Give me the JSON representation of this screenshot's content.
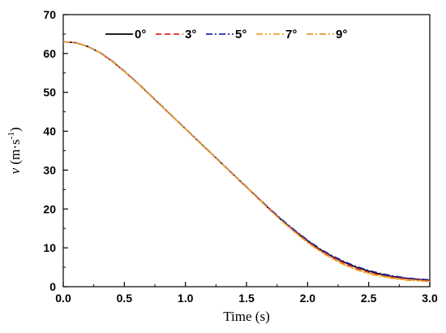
{
  "chart_data": {
    "type": "line",
    "title": "",
    "xlabel": "Time (s)",
    "ylabel": "v (m·s⁻¹)",
    "xlim": [
      0,
      3.0
    ],
    "ylim": [
      0,
      70
    ],
    "xticks": [
      "0.0",
      "0.5",
      "1.0",
      "1.5",
      "2.0",
      "2.5",
      "3.0"
    ],
    "yticks": [
      "0",
      "10",
      "20",
      "30",
      "40",
      "50",
      "60",
      "70"
    ],
    "grid": false,
    "legend": "top",
    "series": [
      {
        "name": "0°",
        "color": "#000000",
        "dash": "solid",
        "x": [
          0,
          0.1,
          0.2,
          0.3,
          0.4,
          0.5,
          0.6,
          0.7,
          0.8,
          0.9,
          1.0,
          1.1,
          1.2,
          1.3,
          1.4,
          1.5,
          1.6,
          1.7,
          1.8,
          1.9,
          2.0,
          2.1,
          2.2,
          2.3,
          2.4,
          2.5,
          2.6,
          2.7,
          2.8,
          2.9,
          3.0
        ],
        "values": [
          63.0,
          62.8,
          61.8,
          60.2,
          58.0,
          55.4,
          52.6,
          49.6,
          46.6,
          43.6,
          40.6,
          37.6,
          34.6,
          31.6,
          28.6,
          25.6,
          22.6,
          19.6,
          16.8,
          14.2,
          11.8,
          9.6,
          7.8,
          6.3,
          5.0,
          4.0,
          3.2,
          2.6,
          2.2,
          1.9,
          1.7
        ]
      },
      {
        "name": "3°",
        "color": "#e8252b",
        "dash": "dashed",
        "x": [
          0,
          0.1,
          0.2,
          0.3,
          0.4,
          0.5,
          0.6,
          0.7,
          0.8,
          0.9,
          1.0,
          1.1,
          1.2,
          1.3,
          1.4,
          1.5,
          1.6,
          1.7,
          1.8,
          1.9,
          2.0,
          2.1,
          2.2,
          2.3,
          2.4,
          2.5,
          2.6,
          2.7,
          2.8,
          2.9,
          3.0
        ],
        "values": [
          63.0,
          62.8,
          61.8,
          60.2,
          58.0,
          55.4,
          52.6,
          49.6,
          46.6,
          43.6,
          40.6,
          37.6,
          34.6,
          31.6,
          28.6,
          25.6,
          22.6,
          19.6,
          16.8,
          14.1,
          11.6,
          9.4,
          7.6,
          6.0,
          4.7,
          3.7,
          2.9,
          2.4,
          2.0,
          1.8,
          1.6
        ]
      },
      {
        "name": "5°",
        "color": "#2a2aa8",
        "dash": "dashdot",
        "x": [
          0,
          0.1,
          0.2,
          0.3,
          0.4,
          0.5,
          0.6,
          0.7,
          0.8,
          0.9,
          1.0,
          1.1,
          1.2,
          1.3,
          1.4,
          1.5,
          1.6,
          1.7,
          1.8,
          1.9,
          2.0,
          2.1,
          2.2,
          2.3,
          2.4,
          2.5,
          2.6,
          2.7,
          2.8,
          2.9,
          3.0
        ],
        "values": [
          63.0,
          62.8,
          61.8,
          60.3,
          58.1,
          55.5,
          52.7,
          49.7,
          46.7,
          43.7,
          40.7,
          37.7,
          34.7,
          31.7,
          28.7,
          25.7,
          22.7,
          19.8,
          17.0,
          14.4,
          12.0,
          9.8,
          8.0,
          6.5,
          5.2,
          4.2,
          3.4,
          2.8,
          2.3,
          2.0,
          1.8
        ]
      },
      {
        "name": "7°",
        "color": "#f4a52a",
        "dash": "dashdotdot",
        "x": [
          0,
          0.1,
          0.2,
          0.3,
          0.4,
          0.5,
          0.6,
          0.7,
          0.8,
          0.9,
          1.0,
          1.1,
          1.2,
          1.3,
          1.4,
          1.5,
          1.6,
          1.7,
          1.8,
          1.9,
          2.0,
          2.1,
          2.2,
          2.3,
          2.4,
          2.5,
          2.6,
          2.7,
          2.8,
          2.9,
          3.0
        ],
        "values": [
          63.0,
          62.8,
          61.8,
          60.2,
          58.0,
          55.4,
          52.6,
          49.6,
          46.6,
          43.6,
          40.6,
          37.6,
          34.6,
          31.6,
          28.6,
          25.6,
          22.5,
          19.5,
          16.6,
          13.9,
          11.3,
          9.1,
          7.2,
          5.6,
          4.3,
          3.3,
          2.6,
          2.1,
          1.7,
          1.5,
          1.3
        ]
      },
      {
        "name": "9°",
        "color": "#e89a2c",
        "dash": "dashdot",
        "x": [
          0,
          0.1,
          0.2,
          0.3,
          0.4,
          0.5,
          0.6,
          0.7,
          0.8,
          0.9,
          1.0,
          1.1,
          1.2,
          1.3,
          1.4,
          1.5,
          1.6,
          1.7,
          1.8,
          1.9,
          2.0,
          2.1,
          2.2,
          2.3,
          2.4,
          2.5,
          2.6,
          2.7,
          2.8,
          2.9,
          3.0
        ],
        "values": [
          63.0,
          62.8,
          61.8,
          60.2,
          58.0,
          55.4,
          52.6,
          49.6,
          46.6,
          43.6,
          40.6,
          37.6,
          34.6,
          31.6,
          28.6,
          25.6,
          22.5,
          19.5,
          16.6,
          13.9,
          11.4,
          9.2,
          7.3,
          5.7,
          4.4,
          3.5,
          2.8,
          2.2,
          1.8,
          1.6,
          1.4
        ]
      }
    ]
  }
}
